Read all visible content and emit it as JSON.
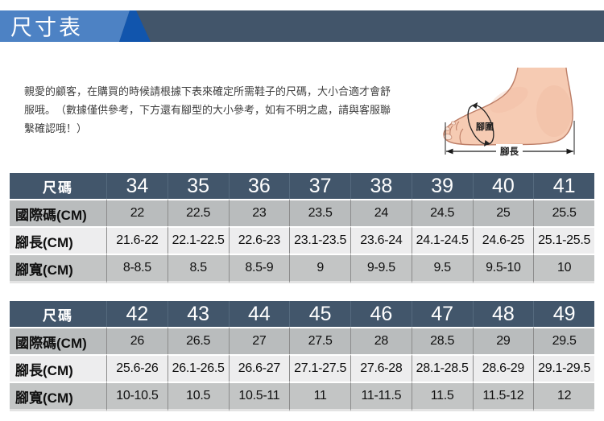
{
  "page": {
    "banner_title": "尺寸表"
  },
  "intro": {
    "lines": [
      "親愛的顧客，在購買的時候請根據下表來確定所需鞋子的尺碼，大小合適才會舒",
      "服哦。　（數據僅供參考，下方還有腳型的大小參考，如有不明之處，請與客服聯",
      "繫確認哦！）"
    ]
  },
  "foot_figure": {
    "girth_label": "腳圍",
    "length_label": "腳長"
  },
  "tables": [
    {
      "header_label": "尺碼",
      "sizes": [
        "34",
        "35",
        "36",
        "37",
        "38",
        "39",
        "40",
        "41"
      ],
      "rows": [
        {
          "label": "國際碼(CM)",
          "values": [
            "22",
            "22.5",
            "23",
            "23.5",
            "24",
            "24.5",
            "25",
            "25.5"
          ]
        },
        {
          "label": "腳長(CM)",
          "values": [
            "21.6-22",
            "22.1-22.5",
            "22.6-23",
            "23.1-23.5",
            "23.6-24",
            "24.1-24.5",
            "24.6-25",
            "25.1-25.5"
          ]
        },
        {
          "label": "腳寬(CM)",
          "values": [
            "8-8.5",
            "8.5",
            "8.5-9",
            "9",
            "9-9.5",
            "9.5",
            "9.5-10",
            "10"
          ]
        }
      ]
    },
    {
      "header_label": "尺碼",
      "sizes": [
        "42",
        "43",
        "44",
        "45",
        "46",
        "47",
        "48",
        "49"
      ],
      "rows": [
        {
          "label": "國際碼(CM)",
          "values": [
            "26",
            "26.5",
            "27",
            "27.5",
            "28",
            "28.5",
            "29",
            "29.5"
          ]
        },
        {
          "label": "腳長(CM)",
          "values": [
            "25.6-26",
            "26.1-26.5",
            "26.6-27",
            "27.1-27.5",
            "27.6-28",
            "28.1-28.5",
            "28.6-29",
            "29.1-29.5"
          ]
        },
        {
          "label": "腳寬(CM)",
          "values": [
            "10-10.5",
            "10.5",
            "10.5-11",
            "11",
            "11-11.5",
            "11.5",
            "11.5-12",
            "12"
          ]
        }
      ]
    }
  ],
  "colors": {
    "banner_light_blue": "#4d82c4",
    "banner_dark_blue": "#1155ad",
    "banner_slate": "#42556a",
    "table_header_bg": "#42566b",
    "row_gray": "#b9bcbd",
    "row_light": "#ededee",
    "foot_skin": "#f6cbb3"
  }
}
